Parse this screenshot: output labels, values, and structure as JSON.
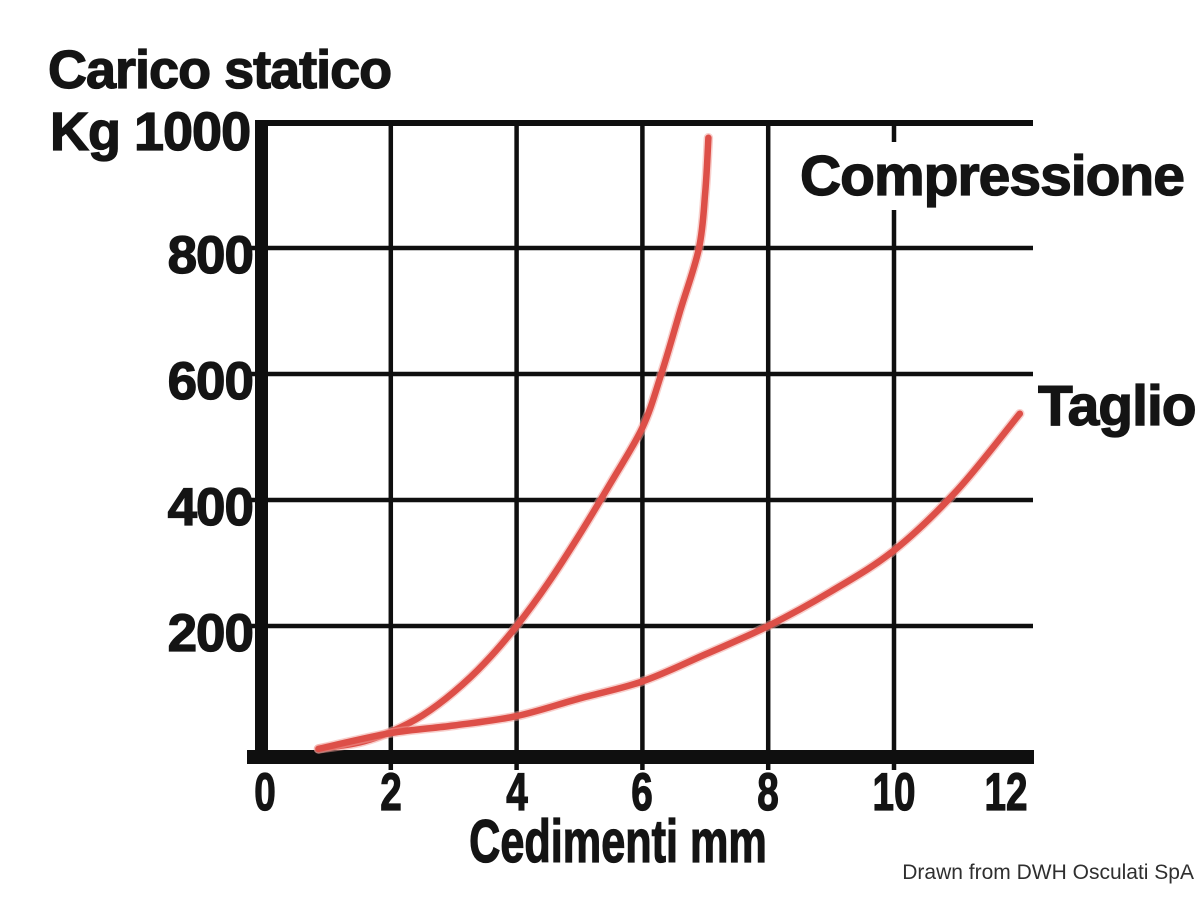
{
  "chart_data": {
    "type": "line",
    "title_line1": "Carico statico",
    "title_line2": "Kg 1000",
    "x_axis": {
      "label": "Cedimenti mm",
      "unit": "mm",
      "min": 0,
      "max": 12,
      "ticks": [
        0,
        2,
        4,
        6,
        8,
        10,
        12
      ]
    },
    "y_axis": {
      "label": "Carico statico Kg 1000",
      "unit": "Kg",
      "min": 0,
      "max": 1000,
      "labeled_ticks": [
        200,
        400,
        600,
        800
      ],
      "gridline_values": [
        200,
        400,
        600,
        800,
        1000
      ],
      "top_tick_label": "Kg 1000"
    },
    "grid": true,
    "legend_position": "labels-inline-right",
    "series": [
      {
        "name": "Compressione",
        "color": "#dd4f48",
        "points": [
          [
            0.85,
            5
          ],
          [
            1.5,
            15
          ],
          [
            2,
            32
          ],
          [
            2.5,
            58
          ],
          [
            3,
            95
          ],
          [
            3.5,
            142
          ],
          [
            4,
            200
          ],
          [
            4.5,
            268
          ],
          [
            5,
            345
          ],
          [
            5.5,
            428
          ],
          [
            6,
            515
          ],
          [
            6.3,
            600
          ],
          [
            6.6,
            700
          ],
          [
            6.9,
            800
          ],
          [
            7.0,
            890
          ],
          [
            7.05,
            975
          ]
        ]
      },
      {
        "name": "Taglio",
        "color": "#dd4f48",
        "points": [
          [
            0.85,
            5
          ],
          [
            2,
            30
          ],
          [
            3,
            42
          ],
          [
            4,
            57
          ],
          [
            5,
            85
          ],
          [
            6,
            112
          ],
          [
            7,
            155
          ],
          [
            8,
            200
          ],
          [
            9,
            255
          ],
          [
            10,
            320
          ],
          [
            11,
            415
          ],
          [
            12,
            537
          ]
        ]
      }
    ],
    "attribution": "Drawn from DWH Osculati SpA"
  },
  "colors": {
    "curve": "#dd4f48",
    "curve_halo": "#f2a09a",
    "grid": "#0f0f0f",
    "text": "#141414",
    "background": "#ffffff"
  }
}
